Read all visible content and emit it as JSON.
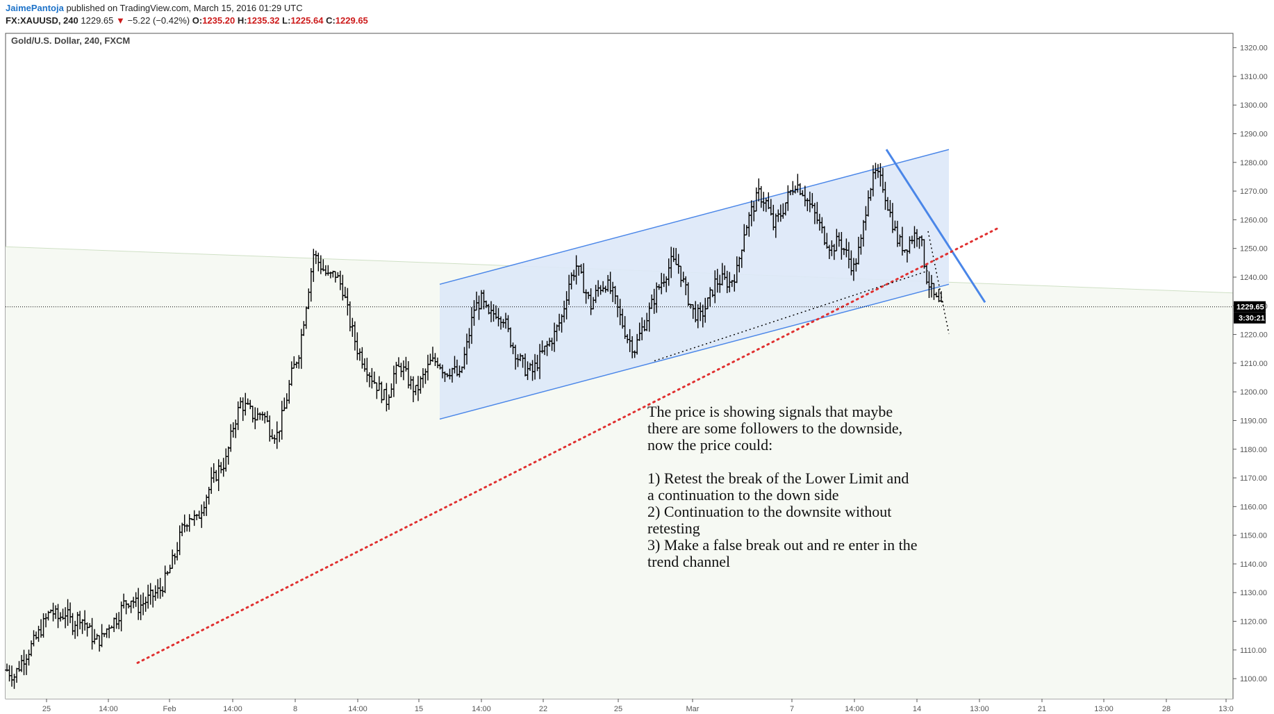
{
  "header": {
    "author": "JaimePantoja",
    "published": "published on TradingView.com, March 15, 2016 01:29 UTC",
    "symbol": "FX:XAUUSD, 240",
    "last": "1229.65",
    "arrow": "▼",
    "change": "−5.22 (−0.42%)",
    "o_label": "O:",
    "o_value": "1235.20",
    "h_label": "H:",
    "h_value": "1235.32",
    "l_label": "L:",
    "l_value": "1225.64",
    "c_label": "C:",
    "c_value": "1229.65"
  },
  "chart_data": {
    "type": "ohlc",
    "title": "Gold/U.S. Dollar, 240, FXCM",
    "interval": "240",
    "ylim": [
      1093,
      1325
    ],
    "y_ticks": [
      1100,
      1110,
      1120,
      1130,
      1140,
      1150,
      1160,
      1170,
      1180,
      1190,
      1200,
      1210,
      1220,
      1230,
      1240,
      1250,
      1260,
      1270,
      1280,
      1290,
      1300,
      1310,
      1320
    ],
    "x_ticks": [
      "25",
      "14:00",
      "Feb",
      "14:00",
      "8",
      "14:00",
      "15",
      "14:00",
      "22",
      "25",
      "Mar",
      "7",
      "14:00",
      "14",
      "13:00",
      "21",
      "13:00",
      "28",
      "13:0"
    ],
    "last_price": {
      "price": 1229.65,
      "label": "1229.65",
      "countdown": "3:30:21"
    },
    "close_path": [
      1103,
      1101,
      1106,
      1110,
      1114,
      1119,
      1124,
      1121,
      1123,
      1119,
      1122,
      1118,
      1113,
      1114,
      1119,
      1121,
      1126,
      1128,
      1125,
      1127,
      1129,
      1131,
      1136,
      1143,
      1152,
      1157,
      1155,
      1162,
      1168,
      1173,
      1176,
      1188,
      1196,
      1194,
      1191,
      1193,
      1187,
      1185,
      1194,
      1206,
      1214,
      1231,
      1248,
      1244,
      1240,
      1241,
      1236,
      1224,
      1215,
      1210,
      1205,
      1201,
      1197,
      1206,
      1209,
      1204,
      1200,
      1205,
      1210,
      1211,
      1207,
      1208,
      1205,
      1216,
      1229,
      1232,
      1226,
      1228,
      1226,
      1218,
      1212,
      1208,
      1207,
      1212,
      1216,
      1220,
      1226,
      1238,
      1244,
      1237,
      1230,
      1236,
      1238,
      1234,
      1226,
      1219,
      1215,
      1222,
      1228,
      1235,
      1240,
      1245,
      1244,
      1235,
      1228,
      1226,
      1231,
      1238,
      1239,
      1238,
      1242,
      1256,
      1263,
      1269,
      1266,
      1258,
      1262,
      1268,
      1273,
      1270,
      1265,
      1260,
      1254,
      1250,
      1253,
      1248,
      1243,
      1252,
      1270,
      1276,
      1272,
      1262,
      1253,
      1250,
      1254,
      1256,
      1240,
      1233,
      1229
    ],
    "series": [
      {
        "name": "Upper channel",
        "points": [
          [
            "15",
            1237.5
          ],
          [
            "Mar 15",
            1284.5
          ]
        ],
        "style": "solid blue"
      },
      {
        "name": "Lower channel",
        "points": [
          [
            "15",
            1190.5
          ],
          [
            "Mar 15",
            1237.5
          ]
        ],
        "style": "solid blue"
      },
      {
        "name": "Descending trendline",
        "points": [
          [
            "Mar 10",
            1284.5
          ],
          [
            "Mar 16",
            1231.2
          ]
        ],
        "style": "solid blue"
      },
      {
        "name": "Long-term support",
        "points": [
          [
            "Jan 27",
            1105.5
          ],
          [
            "Mar 17",
            1257.0
          ]
        ],
        "style": "dotted red"
      },
      {
        "name": "Inner support",
        "points": [
          [
            "Feb 26",
            1210.8
          ],
          [
            "Mar 14",
            1242.2
          ]
        ],
        "style": "dotted black"
      },
      {
        "name": "Projection",
        "points": [
          [
            "Mar 14",
            1256.0
          ],
          [
            "Mar 15",
            1220.3
          ]
        ],
        "style": "dotted black"
      }
    ],
    "annotation": [
      "The price is showing signals that maybe",
      "there are some followers to the downside,",
      "now the price could:",
      "",
      "1) Retest the break of the Lower Limit and",
      "a continuation to the down side",
      "2) Continuation to the downsite without",
      "retesting",
      "3) Make a false break out and re enter in the",
      "trend channel"
    ]
  },
  "colors": {
    "channel_line": "#4a86e8",
    "channel_fill": "#dde8f8",
    "support_red": "#e03030",
    "bars": "#000000",
    "tag_bg": "#000000"
  }
}
